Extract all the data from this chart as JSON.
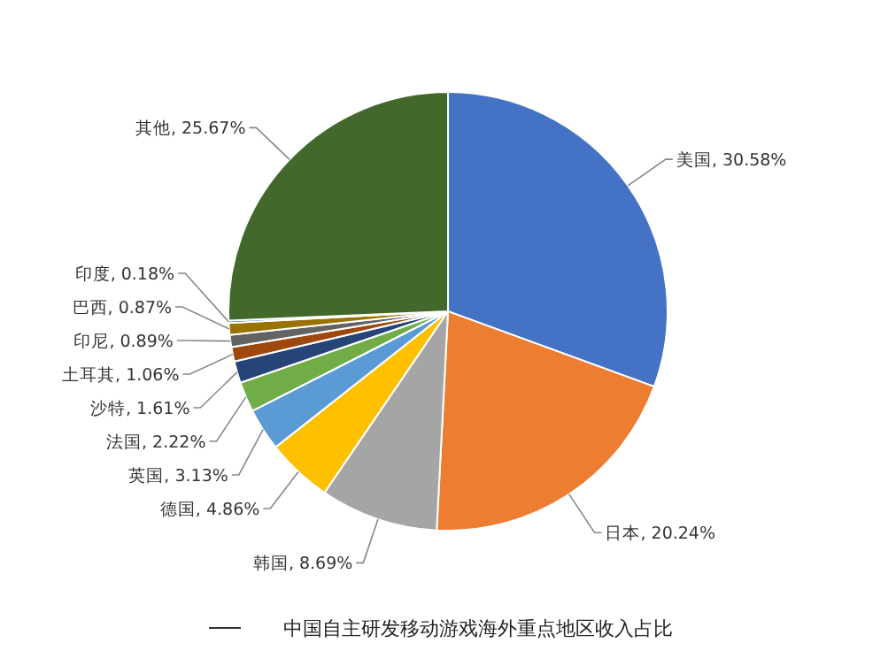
{
  "chart_data": {
    "type": "pie",
    "title": "中国自主研发移动游戏海外重点地区收入占比",
    "categories": [
      "美国",
      "日本",
      "韩国",
      "德国",
      "英国",
      "法国",
      "沙特",
      "土耳其",
      "印尼",
      "巴西",
      "印度",
      "其他"
    ],
    "values": [
      30.58,
      20.24,
      8.69,
      4.86,
      3.13,
      2.22,
      1.61,
      1.06,
      0.89,
      0.87,
      0.18,
      25.67
    ],
    "colors": [
      "#4472c4",
      "#ed7d31",
      "#a5a5a5",
      "#ffc000",
      "#5b9bd5",
      "#70ad47",
      "#264478",
      "#9e480e",
      "#636363",
      "#997300",
      "#255e91",
      "#43682b"
    ],
    "value_labels": [
      ", 30.58%",
      ", 20.24%",
      ", 8.69%",
      ", 4.86%",
      ", 3.13%",
      ", 2.22%",
      ", 1.61%",
      ", 1.06%",
      ", 0.89%",
      ", 0.87%",
      ", 0.18%",
      ", 25.67%"
    ]
  }
}
